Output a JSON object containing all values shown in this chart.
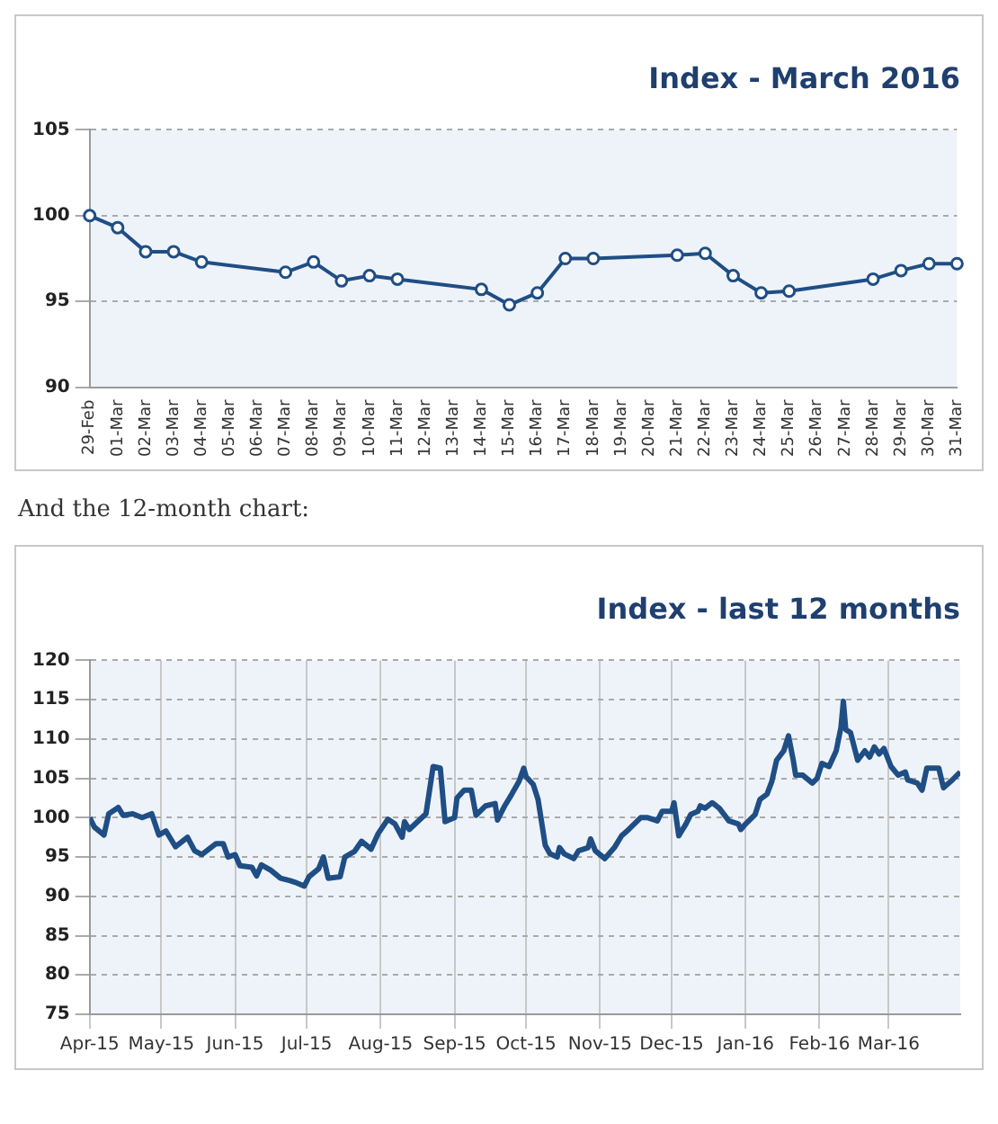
{
  "chart_data": [
    {
      "type": "line",
      "title": "Index - March 2016",
      "categories": [
        "29-Feb",
        "01-Mar",
        "02-Mar",
        "03-Mar",
        "04-Mar",
        "05-Mar",
        "06-Mar",
        "07-Mar",
        "08-Mar",
        "09-Mar",
        "10-Mar",
        "11-Mar",
        "12-Mar",
        "13-Mar",
        "14-Mar",
        "15-Mar",
        "16-Mar",
        "17-Mar",
        "18-Mar",
        "19-Mar",
        "20-Mar",
        "21-Mar",
        "22-Mar",
        "23-Mar",
        "24-Mar",
        "25-Mar",
        "26-Mar",
        "27-Mar",
        "28-Mar",
        "29-Mar",
        "30-Mar",
        "31-Mar"
      ],
      "series": [
        {
          "color": "#1f4e85",
          "values": [
            100,
            99.3,
            97.9,
            97.9,
            97.3,
            null,
            null,
            96.7,
            97.3,
            96.2,
            96.5,
            96.3,
            null,
            null,
            95.7,
            94.8,
            95.5,
            97.5,
            97.5,
            null,
            null,
            97.7,
            97.8,
            96.5,
            95.5,
            95.6,
            null,
            null,
            96.3,
            96.8,
            97.2,
            97.2
          ]
        }
      ],
      "ylim": [
        90,
        105
      ],
      "yticks": [
        90,
        95,
        100,
        105
      ],
      "grid": "y",
      "marker": "circle",
      "legend": false
    },
    {
      "type": "line",
      "title": "Index - last 12 months",
      "annotations": [
        "And the 12-month chart:"
      ],
      "x": [
        "2015-04-01",
        "2015-04-03",
        "2015-04-07",
        "2015-04-09",
        "2015-04-13",
        "2015-04-15",
        "2015-04-19",
        "2015-04-23",
        "2015-04-27",
        "2015-04-30",
        "2015-05-03",
        "2015-05-07",
        "2015-05-12",
        "2015-05-15",
        "2015-05-18",
        "2015-05-24",
        "2015-05-27",
        "2015-05-29",
        "2015-06-01",
        "2015-06-03",
        "2015-06-08",
        "2015-06-10",
        "2015-06-12",
        "2015-06-16",
        "2015-06-20",
        "2015-06-24",
        "2015-06-26",
        "2015-06-30",
        "2015-07-02",
        "2015-07-06",
        "2015-07-08",
        "2015-07-10",
        "2015-07-15",
        "2015-07-17",
        "2015-07-21",
        "2015-07-24",
        "2015-07-28",
        "2015-07-31",
        "2015-08-04",
        "2015-08-07",
        "2015-08-10",
        "2015-08-11",
        "2015-08-13",
        "2015-08-20",
        "2015-08-23",
        "2015-08-26",
        "2015-08-28",
        "2015-09-01",
        "2015-09-02",
        "2015-09-05",
        "2015-09-08",
        "2015-09-10",
        "2015-09-14",
        "2015-09-18",
        "2015-09-19",
        "2015-09-22",
        "2015-09-25",
        "2015-09-28",
        "2015-09-30",
        "2015-10-01",
        "2015-10-04",
        "2015-10-06",
        "2015-10-09",
        "2015-10-11",
        "2015-10-14",
        "2015-10-15",
        "2015-10-17",
        "2015-10-21",
        "2015-10-23",
        "2015-10-27",
        "2015-10-28",
        "2015-10-30",
        "2015-11-03",
        "2015-11-07",
        "2015-11-10",
        "2015-11-13",
        "2015-11-18",
        "2015-11-21",
        "2015-11-25",
        "2015-11-27",
        "2015-12-01",
        "2015-12-02",
        "2015-12-04",
        "2015-12-07",
        "2015-12-09",
        "2015-12-12",
        "2015-12-13",
        "2015-12-15",
        "2015-12-18",
        "2015-12-21",
        "2015-12-25",
        "2015-12-29",
        "2015-12-30",
        "2016-01-01",
        "2016-01-05",
        "2016-01-07",
        "2016-01-10",
        "2016-01-12",
        "2016-01-14",
        "2016-01-17",
        "2016-01-19",
        "2016-01-21",
        "2016-01-22",
        "2016-01-25",
        "2016-01-29",
        "2016-01-31",
        "2016-02-02",
        "2016-02-05",
        "2016-02-08",
        "2016-02-10",
        "2016-02-11",
        "2016-02-12",
        "2016-02-14",
        "2016-02-17",
        "2016-02-20",
        "2016-02-22",
        "2016-02-24",
        "2016-02-26",
        "2016-02-28",
        "2016-03-02",
        "2016-03-05",
        "2016-03-08",
        "2016-03-09",
        "2016-03-13",
        "2016-03-15",
        "2016-03-17",
        "2016-03-22",
        "2016-03-24",
        "2016-03-27",
        "2016-03-31"
      ],
      "series": [
        {
          "color": "#1f4e85",
          "values": [
            100,
            98.8,
            97.8,
            100.5,
            101.3,
            100.3,
            100.5,
            100,
            100.5,
            97.8,
            98.3,
            96.3,
            97.5,
            95.8,
            95.3,
            96.7,
            96.7,
            95,
            95.3,
            93.9,
            93.7,
            92.6,
            94,
            93.3,
            92.3,
            92,
            91.8,
            91.3,
            92.5,
            93.5,
            95,
            92.3,
            92.5,
            95,
            95.7,
            97,
            96,
            98,
            99.8,
            99.2,
            97.5,
            99.5,
            98.5,
            100.5,
            106.5,
            106.3,
            99.5,
            100,
            102.5,
            103.5,
            103.5,
            100.3,
            101.5,
            101.8,
            99.7,
            101.5,
            103,
            104.6,
            106.3,
            105.2,
            104.2,
            102.3,
            96.5,
            95.4,
            95,
            96.2,
            95.4,
            94.8,
            95.8,
            96.2,
            97.3,
            95.8,
            94.8,
            96.2,
            97.7,
            98.5,
            100,
            100,
            99.6,
            100.8,
            100.8,
            101.9,
            97.7,
            99.2,
            100.4,
            100.8,
            101.5,
            101.2,
            101.9,
            101.2,
            99.6,
            99.2,
            98.5,
            99.2,
            100.4,
            102.3,
            103,
            104.6,
            107.3,
            108.5,
            110.4,
            107.3,
            105.4,
            105.4,
            104.4,
            105,
            106.9,
            106.5,
            108.5,
            111.5,
            114.8,
            111.2,
            110.8,
            107.3,
            108.5,
            107.7,
            109,
            108.1,
            108.8,
            106.5,
            105.4,
            105.8,
            104.8,
            104.4,
            103.5,
            106.3,
            106.3,
            103.8,
            104.6,
            105.8
          ]
        }
      ],
      "xlim": [
        "2015-04-01",
        "2016-03-31"
      ],
      "xticks": [
        {
          "value": "2015-04-01",
          "label": "Apr-15"
        },
        {
          "value": "2015-05-01",
          "label": "May-15"
        },
        {
          "value": "2015-06-01",
          "label": "Jun-15"
        },
        {
          "value": "2015-07-01",
          "label": "Jul-15"
        },
        {
          "value": "2015-08-01",
          "label": "Aug-15"
        },
        {
          "value": "2015-09-01",
          "label": "Sep-15"
        },
        {
          "value": "2015-10-01",
          "label": "Oct-15"
        },
        {
          "value": "2015-11-01",
          "label": "Nov-15"
        },
        {
          "value": "2015-12-01",
          "label": "Dec-15"
        },
        {
          "value": "2016-01-01",
          "label": "Jan-16"
        },
        {
          "value": "2016-02-01",
          "label": "Feb-16"
        },
        {
          "value": "2016-03-01",
          "label": "Mar-16"
        }
      ],
      "ylim": [
        75,
        120
      ],
      "yticks": [
        75,
        80,
        85,
        90,
        95,
        100,
        105,
        110,
        115,
        120
      ],
      "grid": true,
      "marker": "none",
      "legend": false
    }
  ]
}
